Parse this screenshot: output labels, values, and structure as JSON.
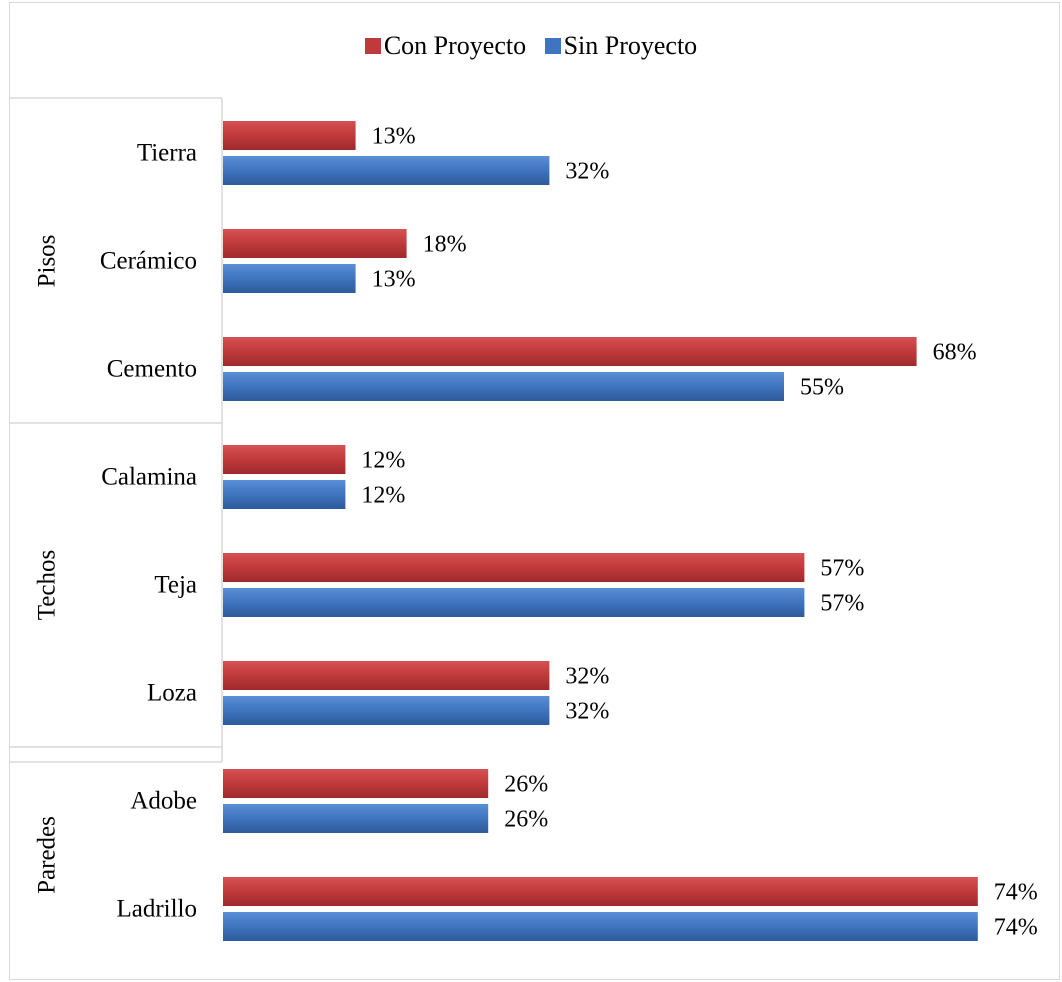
{
  "chart_data": {
    "type": "bar",
    "orientation": "horizontal",
    "groups": [
      {
        "name": "Pisos",
        "categories": [
          "Tierra",
          "Cerámico",
          "Cemento"
        ]
      },
      {
        "name": "Techos",
        "categories": [
          "Calamina",
          "Teja",
          "Loza"
        ]
      },
      {
        "name": "Paredes",
        "categories": [
          "Adobe",
          "Ladrillo"
        ]
      }
    ],
    "categories": [
      "Tierra",
      "Cerámico",
      "Cemento",
      "Calamina",
      "Teja",
      "Loza",
      "Adobe",
      "Ladrillo"
    ],
    "series": [
      {
        "name": "Con Proyecto",
        "color": "#c0393b",
        "values": [
          13,
          18,
          68,
          12,
          57,
          32,
          26,
          74
        ]
      },
      {
        "name": "Sin Proyecto",
        "color": "#3f74bf",
        "values": [
          32,
          13,
          55,
          12,
          57,
          32,
          26,
          74
        ]
      }
    ],
    "value_suffix": "%",
    "xlim": [
      0,
      80
    ],
    "legend_position": "top",
    "grid": false
  }
}
